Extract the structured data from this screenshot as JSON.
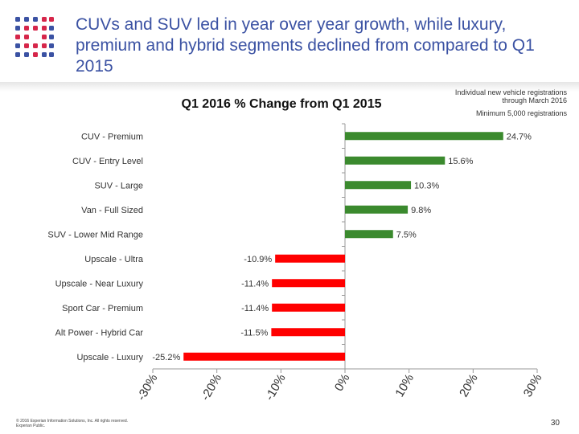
{
  "slide": {
    "title": "CUVs and SUV led in year over year growth, while luxury, premium and hybrid segments declined from compared to Q1 2015",
    "note_line1": "Individual new vehicle registrations",
    "note_line2": "through March 2016",
    "note_line3": "Minimum 5,000 registrations",
    "footer_line1": "© 2016 Experian Information Solutions, Inc. All rights reserved.",
    "footer_line2": "Experian Public.",
    "page_number": "30"
  },
  "colors": {
    "title": "#3b52a3",
    "positive": "#3b8a2e",
    "negative": "#ff0000",
    "logo_blue": "#3b52a3",
    "logo_red": "#d6264a"
  },
  "chart_data": {
    "type": "bar",
    "orientation": "horizontal",
    "title": "Q1 2016 % Change from Q1 2015",
    "categories": [
      "CUV - Premium",
      "CUV - Entry Level",
      "SUV - Large",
      "Van - Full Sized",
      "SUV - Lower Mid Range",
      "Upscale - Ultra",
      "Upscale - Near Luxury",
      "Sport Car - Premium",
      "Alt Power - Hybrid Car",
      "Upscale - Luxury"
    ],
    "values": [
      24.7,
      15.6,
      10.3,
      9.8,
      7.5,
      -10.9,
      -11.4,
      -11.4,
      -11.5,
      -25.2
    ],
    "value_labels": [
      "24.7%",
      "15.6%",
      "10.3%",
      "9.8%",
      "7.5%",
      "-10.9%",
      "-11.4%",
      "-11.4%",
      "-11.5%",
      "-25.2%"
    ],
    "xlim": [
      -30,
      30
    ],
    "ticks": [
      -30,
      -20,
      -10,
      0,
      10,
      20,
      30
    ],
    "tick_labels": [
      "-30%",
      "-20%",
      "-10%",
      "0%",
      "10%",
      "20%",
      "30%"
    ],
    "xlabel": "",
    "ylabel": "",
    "grid": false,
    "legend": "none"
  }
}
